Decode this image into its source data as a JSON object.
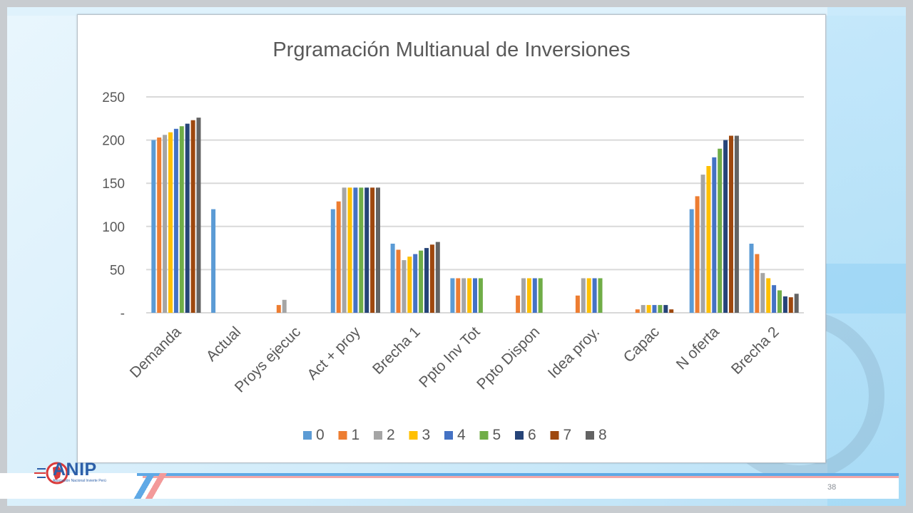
{
  "slide": {
    "page_number": "38",
    "logo": {
      "name": "ANIP",
      "subtitle": "Asociación Nacional Invierte Perú"
    }
  },
  "colors": {
    "series": [
      "#5b9bd5",
      "#ed7d31",
      "#a5a5a5",
      "#ffc000",
      "#4472c4",
      "#70ad47",
      "#264478",
      "#9e480e",
      "#636363"
    ],
    "gridline": "#d9d9d9",
    "text": "#595959",
    "logo": "#2d5fa8"
  },
  "chart_data": {
    "type": "bar",
    "title": "Prgramación Multianual de Inversiones",
    "xlabel": "",
    "ylabel": "",
    "ylim": [
      0,
      250
    ],
    "yticks": [
      {
        "value": 0,
        "label": "-"
      },
      {
        "value": 50,
        "label": "50"
      },
      {
        "value": 100,
        "label": "100"
      },
      {
        "value": 150,
        "label": "150"
      },
      {
        "value": 200,
        "label": "200"
      },
      {
        "value": 250,
        "label": "250"
      }
    ],
    "grid": true,
    "legend_position": "bottom",
    "categories": [
      "Demanda",
      "Actual",
      "Proys ejecuc",
      "Act + proy",
      "Brecha 1",
      "Ppto Inv Tot",
      "Ppto Dispon",
      "Idea proy.",
      "Capac",
      "N oferta",
      "Brecha 2"
    ],
    "series": [
      {
        "name": "0",
        "values": [
          200,
          120,
          0,
          120,
          80,
          40,
          0,
          0,
          0,
          120,
          80
        ]
      },
      {
        "name": "1",
        "values": [
          203,
          0,
          9,
          129,
          73,
          40,
          20,
          20,
          4,
          135,
          68
        ]
      },
      {
        "name": "2",
        "values": [
          206,
          0,
          15,
          145,
          61,
          40,
          40,
          40,
          9,
          160,
          46
        ]
      },
      {
        "name": "3",
        "values": [
          209,
          0,
          0,
          145,
          65,
          40,
          40,
          40,
          9,
          170,
          40
        ]
      },
      {
        "name": "4",
        "values": [
          213,
          0,
          0,
          145,
          68,
          40,
          40,
          40,
          9,
          180,
          32
        ]
      },
      {
        "name": "5",
        "values": [
          216,
          0,
          0,
          145,
          72,
          40,
          40,
          40,
          9,
          190,
          26
        ]
      },
      {
        "name": "6",
        "values": [
          219,
          0,
          0,
          145,
          75,
          0,
          0,
          0,
          9,
          200,
          19
        ]
      },
      {
        "name": "7",
        "values": [
          223,
          0,
          0,
          145,
          79,
          0,
          0,
          0,
          4,
          205,
          18
        ]
      },
      {
        "name": "8",
        "values": [
          226,
          0,
          0,
          145,
          82,
          0,
          0,
          0,
          0,
          205,
          22
        ]
      }
    ]
  }
}
